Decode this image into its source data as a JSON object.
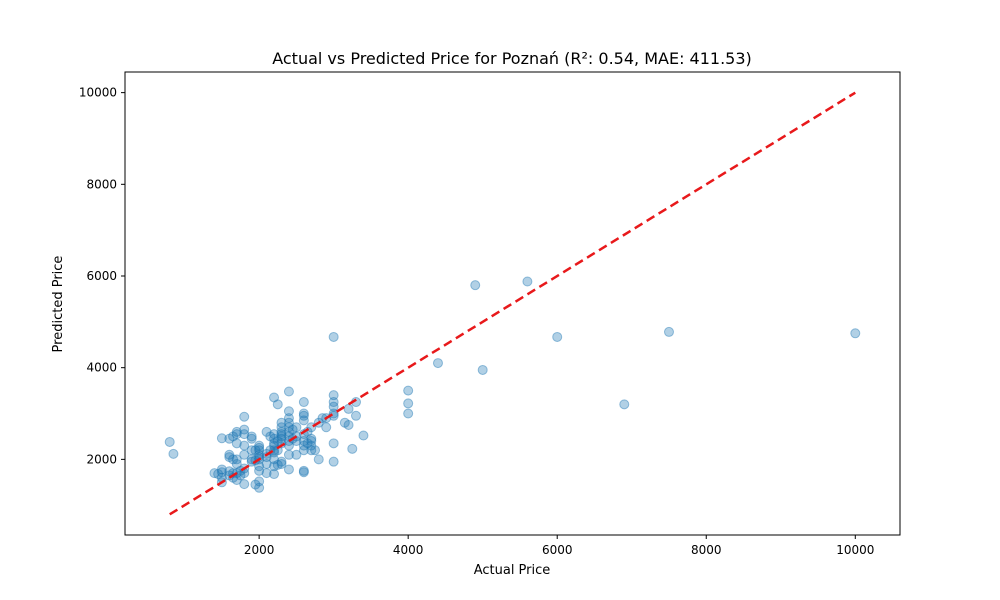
{
  "chart_data": {
    "type": "scatter",
    "title": "Actual vs Predicted Price for Poznań (R²: 0.54, MAE: 411.53)",
    "xlabel": "Actual Price",
    "ylabel": "Predicted Price",
    "xlim": [
      200,
      10600
    ],
    "ylim": [
      350,
      10450
    ],
    "xticks": [
      2000,
      4000,
      6000,
      8000,
      10000
    ],
    "yticks": [
      2000,
      4000,
      6000,
      8000,
      10000
    ],
    "grid": false,
    "colors": {
      "points": "#1f77b4",
      "reference": "#e8191b"
    },
    "reference_line": {
      "x": [
        800,
        10000
      ],
      "y": [
        800,
        10000
      ]
    },
    "points": [
      [
        800,
        2380
      ],
      [
        850,
        2120
      ],
      [
        1400,
        1700
      ],
      [
        1450,
        1680
      ],
      [
        1500,
        1720
      ],
      [
        1500,
        1600
      ],
      [
        1500,
        1500
      ],
      [
        1500,
        1780
      ],
      [
        1500,
        2460
      ],
      [
        1600,
        1650
      ],
      [
        1600,
        1740
      ],
      [
        1600,
        2050
      ],
      [
        1600,
        2100
      ],
      [
        1600,
        2450
      ],
      [
        1650,
        1700
      ],
      [
        1650,
        1600
      ],
      [
        1650,
        2000
      ],
      [
        1650,
        2500
      ],
      [
        1700,
        1550
      ],
      [
        1700,
        1700
      ],
      [
        1700,
        1900
      ],
      [
        1700,
        2000
      ],
      [
        1700,
        2350
      ],
      [
        1700,
        2550
      ],
      [
        1700,
        2600
      ],
      [
        1750,
        1650
      ],
      [
        1750,
        1750
      ],
      [
        1800,
        1460
      ],
      [
        1800,
        1700
      ],
      [
        1800,
        1800
      ],
      [
        1800,
        2100
      ],
      [
        1800,
        2300
      ],
      [
        1800,
        2550
      ],
      [
        1800,
        2650
      ],
      [
        1800,
        2930
      ],
      [
        1900,
        1950
      ],
      [
        1900,
        2000
      ],
      [
        1900,
        2200
      ],
      [
        1900,
        2450
      ],
      [
        1900,
        2500
      ],
      [
        1950,
        1450
      ],
      [
        1950,
        1980
      ],
      [
        1950,
        2200
      ],
      [
        2000,
        1380
      ],
      [
        2000,
        1520
      ],
      [
        2000,
        1750
      ],
      [
        2000,
        1850
      ],
      [
        2000,
        2000
      ],
      [
        2000,
        2050
      ],
      [
        2000,
        2100
      ],
      [
        2000,
        2200
      ],
      [
        2000,
        2250
      ],
      [
        2000,
        2300
      ],
      [
        2100,
        1700
      ],
      [
        2100,
        1900
      ],
      [
        2100,
        2050
      ],
      [
        2100,
        2120
      ],
      [
        2100,
        2600
      ],
      [
        2150,
        2200
      ],
      [
        2150,
        2500
      ],
      [
        2200,
        1680
      ],
      [
        2200,
        1850
      ],
      [
        2200,
        2000
      ],
      [
        2200,
        2150
      ],
      [
        2200,
        2200
      ],
      [
        2200,
        2300
      ],
      [
        2200,
        2350
      ],
      [
        2200,
        2450
      ],
      [
        2200,
        2550
      ],
      [
        2200,
        3350
      ],
      [
        2250,
        1880
      ],
      [
        2250,
        2200
      ],
      [
        2250,
        2400
      ],
      [
        2250,
        3200
      ],
      [
        2300,
        1900
      ],
      [
        2300,
        1950
      ],
      [
        2300,
        2350
      ],
      [
        2300,
        2450
      ],
      [
        2300,
        2500
      ],
      [
        2300,
        2550
      ],
      [
        2300,
        2600
      ],
      [
        2300,
        2700
      ],
      [
        2300,
        2800
      ],
      [
        2400,
        1780
      ],
      [
        2400,
        2100
      ],
      [
        2400,
        2300
      ],
      [
        2400,
        2400
      ],
      [
        2400,
        2500
      ],
      [
        2400,
        2600
      ],
      [
        2400,
        2700
      ],
      [
        2400,
        2800
      ],
      [
        2400,
        2900
      ],
      [
        2400,
        3050
      ],
      [
        2400,
        3480
      ],
      [
        2450,
        2450
      ],
      [
        2450,
        2650
      ],
      [
        2500,
        2100
      ],
      [
        2500,
        2400
      ],
      [
        2500,
        2500
      ],
      [
        2500,
        2700
      ],
      [
        2600,
        1720
      ],
      [
        2600,
        1750
      ],
      [
        2600,
        2200
      ],
      [
        2600,
        2300
      ],
      [
        2600,
        2400
      ],
      [
        2600,
        2550
      ],
      [
        2600,
        2850
      ],
      [
        2600,
        2950
      ],
      [
        2600,
        3000
      ],
      [
        2600,
        3250
      ],
      [
        2650,
        2350
      ],
      [
        2650,
        2600
      ],
      [
        2700,
        2200
      ],
      [
        2700,
        2300
      ],
      [
        2700,
        2400
      ],
      [
        2700,
        2450
      ],
      [
        2700,
        2700
      ],
      [
        2750,
        2200
      ],
      [
        2800,
        2000
      ],
      [
        2800,
        2800
      ],
      [
        2850,
        2900
      ],
      [
        2900,
        2700
      ],
      [
        2900,
        2900
      ],
      [
        3000,
        1950
      ],
      [
        3000,
        2350
      ],
      [
        3000,
        2950
      ],
      [
        3000,
        3000
      ],
      [
        3000,
        3150
      ],
      [
        3000,
        3250
      ],
      [
        3000,
        3400
      ],
      [
        3000,
        4670
      ],
      [
        3150,
        2800
      ],
      [
        3200,
        2750
      ],
      [
        3200,
        3100
      ],
      [
        3250,
        2230
      ],
      [
        3300,
        2950
      ],
      [
        3300,
        3250
      ],
      [
        3400,
        2520
      ],
      [
        4000,
        3000
      ],
      [
        4000,
        3220
      ],
      [
        4000,
        3500
      ],
      [
        4400,
        4100
      ],
      [
        4900,
        5800
      ],
      [
        5000,
        3950
      ],
      [
        5600,
        5880
      ],
      [
        6000,
        4670
      ],
      [
        6900,
        3200
      ],
      [
        7500,
        4780
      ],
      [
        10000,
        4750
      ]
    ]
  }
}
